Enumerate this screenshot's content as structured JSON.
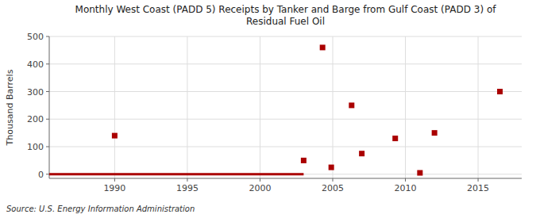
{
  "chart_data": {
    "type": "scatter",
    "title": "Monthly West Coast (PADD 5) Receipts by Tanker and Barge from Gulf Coast (PADD 3) of\nResidual Fuel Oil",
    "y_label": "Thousand Barrels",
    "source": "Source: U.S. Energy Information Administration",
    "xlim": [
      1985.5,
      2018
    ],
    "ylim": [
      -15,
      500
    ],
    "xticks": [
      1990,
      1995,
      2000,
      2005,
      2010,
      2015
    ],
    "yticks": [
      0,
      100,
      200,
      300,
      400,
      500
    ],
    "grid": true,
    "series": [
      {
        "type": "line",
        "color": "#AA0000",
        "x": [
          1985.5,
          2003.0
        ],
        "values": [
          0,
          0
        ]
      },
      {
        "type": "scatter",
        "color": "#AA0000",
        "marker": "square",
        "x": [
          1990.0,
          2003.0,
          2004.3,
          2004.9,
          2006.3,
          2007.0,
          2009.3,
          2011.0,
          2012.0,
          2016.5
        ],
        "values": [
          140,
          50,
          460,
          25,
          250,
          75,
          130,
          5,
          150,
          300
        ]
      }
    ]
  }
}
